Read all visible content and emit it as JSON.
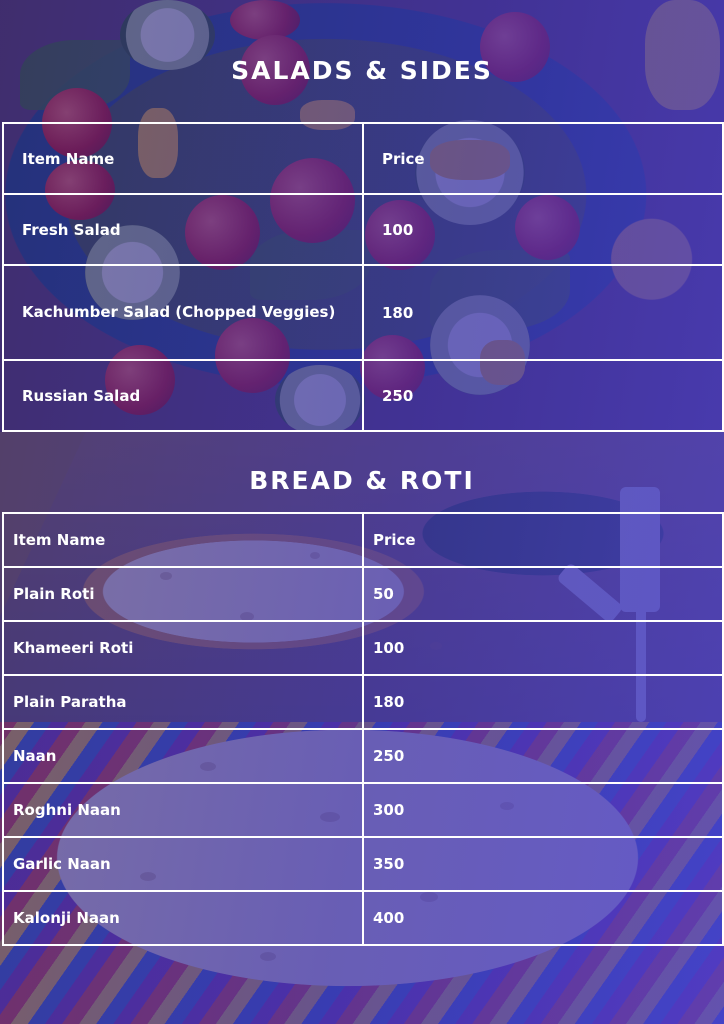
{
  "salads": {
    "title": "SALADS & SIDES",
    "header": {
      "name": "Item Name",
      "price": "Price"
    },
    "items": [
      {
        "name": "Fresh Salad",
        "price": "100"
      },
      {
        "name": "Kachumber Salad (Chopped Veggies)",
        "price": "180"
      },
      {
        "name": "Russian Salad",
        "price": "250"
      }
    ]
  },
  "bread": {
    "title": "BREAD & ROTI",
    "header": {
      "name": "Item Name",
      "price": "Price"
    },
    "items": [
      {
        "name": "Plain Roti",
        "price": "50"
      },
      {
        "name": "Khameeri Roti",
        "price": "100"
      },
      {
        "name": "Plain Paratha",
        "price": "180"
      },
      {
        "name": "Naan",
        "price": "250"
      },
      {
        "name": "Roghni Naan",
        "price": "300"
      },
      {
        "name": "Garlic Naan",
        "price": "350"
      },
      {
        "name": "Kalonji Naan",
        "price": "400"
      }
    ]
  },
  "colors": {
    "overlay": "#3a2da0",
    "text": "#ffffff",
    "grid": "#ffffff"
  }
}
